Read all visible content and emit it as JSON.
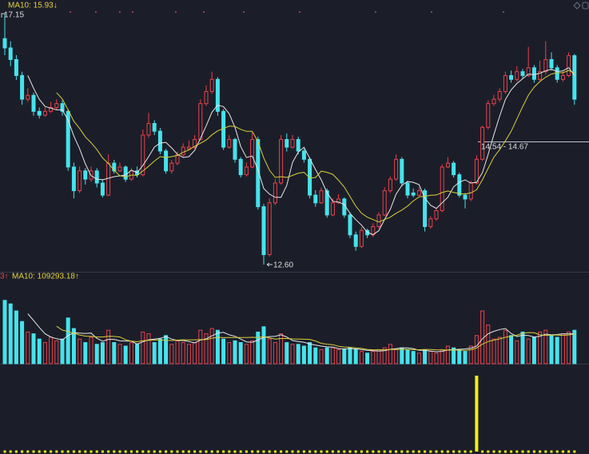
{
  "chart_data": [
    {
      "type": "candlestick",
      "legend": "MA10: 15.93↓",
      "high_label": "17.15",
      "low_label": "12.60",
      "crosshair_label": "14.54 - 14.67",
      "up_color": "#e8414a",
      "down_color": "#46e3ec",
      "ma5_color": "#e6e6e6",
      "ma10_color": "#d9cf3a",
      "legend_color": "#e6d23c",
      "ylim": [
        12.47,
        17.4
      ],
      "open": [
        16.7,
        16.53,
        16.32,
        16.03,
        15.6,
        15.67,
        15.38,
        15.31,
        15.38,
        15.45,
        15.52,
        15.38,
        14.37,
        13.94,
        14.3,
        14.15,
        14.3,
        14.08,
        13.86,
        14.44,
        14.3,
        14.37,
        14.15,
        14.3,
        14.23,
        14.95,
        15.16,
        15.02,
        14.66,
        14.3,
        14.44,
        14.59,
        14.7,
        14.73,
        14.87,
        15.52,
        15.74,
        15.96,
        15.38,
        14.73,
        14.87,
        14.51,
        14.23,
        14.37,
        14.87,
        13.65,
        12.78,
        13.72,
        14.08,
        14.87,
        14.73,
        14.87,
        14.66,
        14.51,
        13.86,
        13.72,
        13.94,
        13.5,
        13.72,
        13.79,
        13.5,
        13.14,
        12.93,
        13.22,
        13.14,
        13.29,
        13.5,
        13.94,
        14.15,
        14.51,
        14.08,
        13.9,
        13.86,
        13.94,
        13.29,
        13.43,
        13.58,
        14.37,
        14.44,
        14.23,
        13.86,
        13.79,
        14.08,
        14.51,
        15.09,
        15.52,
        15.6,
        15.74,
        16.03,
        15.96,
        16.1,
        16.03,
        16.17,
        15.96,
        16.1,
        16.32,
        16.17,
        15.96,
        16.03,
        16.39
      ],
      "high": [
        17.15,
        16.65,
        16.4,
        16.1,
        15.8,
        15.72,
        15.45,
        15.45,
        15.55,
        15.6,
        15.58,
        15.42,
        14.45,
        14.38,
        14.35,
        14.38,
        14.35,
        14.15,
        14.6,
        14.5,
        14.45,
        14.4,
        14.35,
        14.38,
        15.05,
        15.35,
        15.22,
        15.08,
        14.7,
        14.5,
        14.65,
        14.8,
        14.85,
        14.95,
        15.6,
        15.85,
        16.1,
        16.0,
        15.42,
        14.95,
        14.9,
        14.55,
        14.45,
        15.0,
        14.92,
        13.7,
        13.8,
        14.15,
        14.95,
        14.98,
        14.95,
        14.92,
        14.7,
        14.55,
        13.95,
        14.0,
        13.98,
        13.8,
        13.88,
        13.82,
        13.55,
        13.2,
        13.28,
        13.25,
        13.35,
        13.55,
        14.0,
        14.2,
        14.6,
        14.55,
        14.12,
        13.98,
        14.0,
        13.98,
        13.48,
        13.62,
        14.42,
        14.55,
        14.48,
        14.27,
        13.9,
        14.12,
        14.58,
        15.12,
        15.58,
        15.68,
        15.8,
        16.1,
        16.12,
        16.2,
        16.15,
        16.55,
        16.22,
        16.3,
        16.65,
        16.45,
        16.22,
        16.1,
        16.45,
        16.42
      ],
      "low": [
        16.4,
        16.2,
        15.95,
        15.5,
        15.55,
        15.3,
        15.25,
        15.28,
        15.35,
        15.4,
        15.3,
        14.3,
        13.8,
        13.9,
        14.05,
        14.1,
        14.0,
        13.82,
        13.84,
        14.25,
        14.28,
        14.1,
        14.12,
        14.18,
        14.2,
        14.9,
        14.95,
        14.6,
        14.25,
        14.25,
        14.4,
        14.55,
        14.68,
        14.7,
        14.85,
        15.48,
        15.7,
        15.3,
        14.68,
        14.7,
        14.45,
        14.18,
        14.2,
        14.35,
        13.6,
        12.6,
        12.75,
        13.68,
        14.05,
        14.65,
        14.7,
        14.6,
        14.45,
        13.8,
        13.65,
        13.7,
        13.45,
        13.48,
        13.7,
        13.45,
        13.08,
        12.85,
        12.9,
        13.08,
        13.1,
        13.25,
        13.48,
        13.9,
        14.12,
        14.02,
        13.8,
        13.82,
        13.84,
        13.2,
        13.25,
        13.4,
        13.55,
        14.35,
        14.18,
        13.82,
        13.62,
        13.75,
        14.05,
        14.48,
        15.05,
        15.48,
        15.55,
        15.7,
        15.9,
        15.92,
        15.98,
        16.0,
        15.9,
        15.92,
        16.05,
        16.12,
        15.9,
        15.92,
        16.0,
        15.5
      ],
      "close": [
        16.53,
        16.32,
        16.03,
        15.6,
        15.67,
        15.38,
        15.31,
        15.38,
        15.45,
        15.52,
        15.38,
        14.37,
        13.94,
        14.3,
        14.15,
        14.3,
        14.08,
        13.86,
        14.44,
        14.3,
        14.37,
        14.15,
        14.3,
        14.23,
        14.95,
        15.16,
        15.02,
        14.66,
        14.3,
        14.44,
        14.59,
        14.73,
        14.73,
        14.87,
        15.52,
        15.74,
        15.96,
        15.38,
        14.73,
        14.87,
        14.51,
        14.23,
        14.37,
        14.87,
        13.65,
        12.78,
        13.72,
        14.08,
        14.87,
        14.73,
        14.87,
        14.66,
        14.51,
        13.86,
        13.72,
        13.94,
        13.5,
        13.72,
        13.79,
        13.5,
        13.14,
        12.93,
        13.22,
        13.14,
        13.29,
        13.5,
        13.94,
        14.15,
        14.51,
        14.08,
        13.86,
        13.86,
        13.94,
        13.29,
        13.43,
        13.58,
        14.37,
        14.44,
        14.23,
        13.86,
        13.79,
        14.08,
        14.51,
        15.09,
        15.52,
        15.6,
        15.74,
        16.03,
        15.96,
        16.1,
        16.03,
        16.17,
        15.96,
        16.1,
        16.32,
        16.17,
        15.96,
        16.03,
        16.39,
        15.6
      ]
    },
    {
      "type": "bar",
      "legend_fragment": "3↑",
      "legend": "MA10: 109293.18↑",
      "legend_color": "#e6d23c",
      "fragment_color": "#e8414a",
      "ylim": [
        0,
        250000
      ],
      "values": [
        180000,
        170000,
        150000,
        120000,
        90000,
        85000,
        70000,
        60000,
        75000,
        65000,
        70000,
        130000,
        100000,
        70000,
        60000,
        75000,
        55000,
        60000,
        95000,
        60000,
        55000,
        50000,
        60000,
        55000,
        90000,
        85000,
        60000,
        70000,
        80000,
        55000,
        65000,
        60000,
        55000,
        60000,
        95000,
        85000,
        100000,
        95000,
        70000,
        60000,
        65000,
        60000,
        55000,
        65000,
        90000,
        105000,
        70000,
        60000,
        85000,
        60000,
        55000,
        55000,
        50000,
        60000,
        45000,
        40000,
        45000,
        45000,
        40000,
        40000,
        45000,
        40000,
        35000,
        30000,
        35000,
        40000,
        45000,
        55000,
        40000,
        45000,
        40000,
        35000,
        30000,
        40000,
        35000,
        30000,
        40000,
        50000,
        45000,
        40000,
        35000,
        50000,
        80000,
        150000,
        110000,
        70000,
        75000,
        95000,
        80000,
        65000,
        90000,
        70000,
        75000,
        90000,
        95000,
        80000,
        75000,
        85000,
        90000,
        95000
      ]
    },
    {
      "type": "signal",
      "color": "#f2ee1a",
      "ylim": [
        0,
        1
      ],
      "values": [
        0,
        0,
        0,
        0,
        0,
        0,
        0,
        0,
        0,
        0,
        0,
        0,
        0,
        0,
        0,
        0,
        0,
        0,
        0,
        0,
        0,
        0,
        0,
        0,
        0,
        0,
        0,
        0,
        0,
        0,
        0,
        0,
        0,
        0,
        0,
        0,
        0,
        0,
        0,
        0,
        0,
        0,
        0,
        0,
        0,
        0,
        0,
        0,
        0,
        0,
        0,
        0,
        0,
        0,
        0,
        0,
        0,
        0,
        0,
        0,
        0,
        0,
        0,
        0,
        0,
        0,
        0,
        0,
        0,
        0,
        0,
        0,
        0,
        0,
        0,
        0,
        0,
        0,
        0,
        0,
        0,
        0,
        1,
        0,
        0,
        0,
        0,
        0,
        0,
        0,
        0,
        0,
        0,
        0,
        0,
        0,
        0,
        0,
        0,
        0
      ]
    }
  ]
}
